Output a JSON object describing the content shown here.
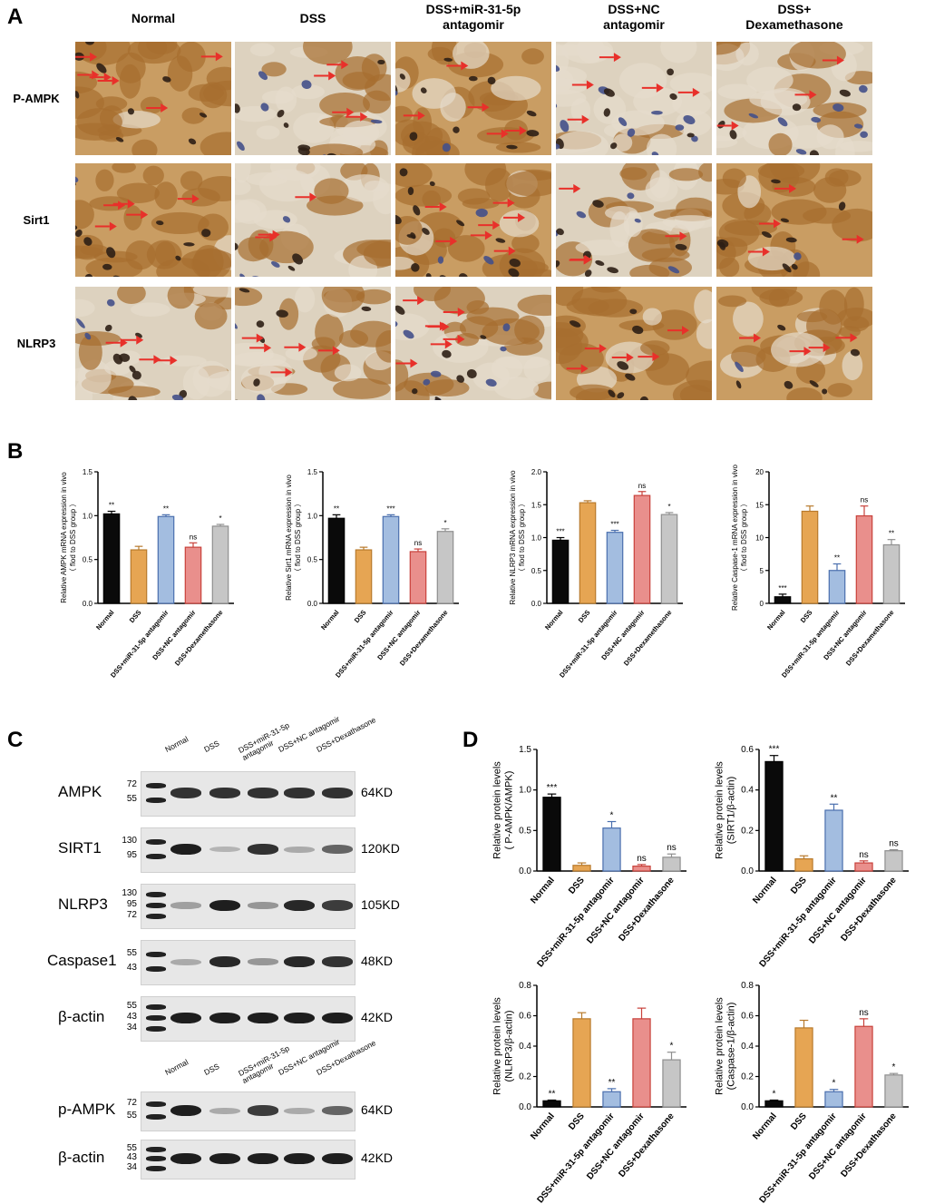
{
  "panel_letters": {
    "a": "A",
    "b": "B",
    "c": "C",
    "d": "D"
  },
  "panel_a": {
    "columns": [
      "Normal",
      "DSS",
      "DSS+miR-31-5p\nantagomir",
      "DSS+NC\nantagomir",
      "DSS+\nDexamethasone"
    ],
    "rows": [
      "P-AMPK",
      "Sirt1",
      "NLRP3"
    ],
    "colors": {
      "brown": "#b07a3c",
      "dark": "#3a2a1e",
      "blue": "#4f5f9a",
      "bg": "#e9dcc8",
      "arrow": "#e8302a"
    }
  },
  "panel_c": {
    "lanes": [
      "Normal",
      "DSS",
      "DSS+miR-31-5p\nantagomir",
      "DSS+NC antagomir",
      "DSS+Dexathasone"
    ],
    "blots": [
      {
        "name": "AMPK",
        "mw": [
          "72",
          "55"
        ],
        "kd": "64KD",
        "intensity": [
          0.85,
          0.85,
          0.85,
          0.85,
          0.85
        ]
      },
      {
        "name": "SIRT1",
        "mw": [
          "130",
          "95"
        ],
        "kd": "120KD",
        "intensity": [
          0.95,
          0.2,
          0.85,
          0.25,
          0.6
        ]
      },
      {
        "name": "NLRP3",
        "mw": [
          "130",
          "95",
          "72"
        ],
        "kd": "105KD",
        "intensity": [
          0.3,
          0.95,
          0.35,
          0.9,
          0.8
        ]
      },
      {
        "name": "Caspase1",
        "mw": [
          "55",
          "43"
        ],
        "kd": "48KD",
        "intensity": [
          0.25,
          0.9,
          0.35,
          0.9,
          0.85
        ]
      },
      {
        "name": "β-actin",
        "mw": [
          "55",
          "43",
          "34"
        ],
        "kd": "42KD",
        "intensity": [
          0.95,
          0.95,
          0.95,
          0.95,
          0.95
        ]
      }
    ],
    "lanes2": [
      "Normal",
      "DSS",
      "DSS+miR-31-5p\nantagomir",
      "DSS+NC antagomir",
      "DSS+Dexathasone"
    ],
    "blots2": [
      {
        "name": "p-AMPK",
        "mw": [
          "72",
          "55"
        ],
        "kd": "64KD",
        "intensity": [
          0.95,
          0.25,
          0.8,
          0.25,
          0.6
        ]
      },
      {
        "name": "β-actin",
        "mw": [
          "55",
          "43",
          "34"
        ],
        "kd": "42KD",
        "intensity": [
          0.95,
          0.95,
          0.95,
          0.95,
          0.95
        ]
      }
    ]
  },
  "chart_data": [
    {
      "id": "b1",
      "type": "bar",
      "categories": [
        "Normal",
        "DSS",
        "DSS+miR-31-5p antagomir",
        "DSS+NC antagomir",
        "DSS+Dexamethasone"
      ],
      "values": [
        1.02,
        0.61,
        0.99,
        0.64,
        0.88
      ],
      "errors": [
        0.03,
        0.04,
        0.02,
        0.05,
        0.02
      ],
      "sig": [
        "**",
        "",
        "**",
        "ns",
        "*"
      ],
      "ylabel": "Relative AMPK mRNA expression in vivo\n（ flod to DSS group ）",
      "ylim": [
        0,
        1.5
      ],
      "ticks": [
        0.0,
        0.5,
        1.0,
        1.5
      ],
      "decimals": 1
    },
    {
      "id": "b2",
      "type": "bar",
      "categories": [
        "Normal",
        "DSS",
        "DSS+miR-31-5p antagomir",
        "DSS+NC antagomir",
        "DSS+Dexamethasone"
      ],
      "values": [
        0.97,
        0.61,
        0.99,
        0.59,
        0.82
      ],
      "errors": [
        0.04,
        0.03,
        0.02,
        0.03,
        0.03
      ],
      "sig": [
        "**",
        "",
        "***",
        "ns",
        "*"
      ],
      "ylabel": "Relative Sirt1 mRNA expression in vivo\n（ flod to DSS group ）",
      "ylim": [
        0,
        1.5
      ],
      "ticks": [
        0.0,
        0.5,
        1.0,
        1.5
      ],
      "decimals": 1
    },
    {
      "id": "b3",
      "type": "bar",
      "categories": [
        "Normal",
        "DSS",
        "DSS+miR-31-5p antagomir",
        "DSS+NC antagomir",
        "DSS+Dexamethasone"
      ],
      "values": [
        0.96,
        1.53,
        1.08,
        1.64,
        1.35
      ],
      "errors": [
        0.04,
        0.03,
        0.03,
        0.06,
        0.03
      ],
      "sig": [
        "***",
        "",
        "***",
        "ns",
        "*"
      ],
      "ylabel": "Relative NLRP3 mRNA expression in vivo\n（ flod to DSS group ）",
      "ylim": [
        0,
        2.0
      ],
      "ticks": [
        0.0,
        0.5,
        1.0,
        1.5,
        2.0
      ],
      "decimals": 1
    },
    {
      "id": "b4",
      "type": "bar",
      "categories": [
        "Normal",
        "DSS",
        "DSS+miR-31-5p antagomir",
        "DSS+NC antagomir",
        "DSS+Dexamethasone"
      ],
      "values": [
        1.0,
        14.0,
        5.0,
        13.3,
        8.9
      ],
      "errors": [
        0.4,
        0.8,
        1.0,
        1.5,
        0.8
      ],
      "sig": [
        "***",
        "",
        "**",
        "ns",
        "**"
      ],
      "ylabel": "Relative Caspase-1 mRNA expression in vivo\n（ flod to DSS group ）",
      "ylim": [
        0,
        20
      ],
      "ticks": [
        0,
        5,
        10,
        15,
        20
      ],
      "decimals": 0
    },
    {
      "id": "d1",
      "type": "bar",
      "categories": [
        "Normal",
        "DSS",
        "DSS+miR-31-5p antagomir",
        "DSS+NC antagomir",
        "DSS+Dexathasone"
      ],
      "values": [
        0.91,
        0.07,
        0.53,
        0.06,
        0.17
      ],
      "errors": [
        0.04,
        0.03,
        0.08,
        0.02,
        0.04
      ],
      "sig": [
        "***",
        "",
        "*",
        "ns",
        "ns"
      ],
      "ylabel": "Relative protein levels\n( P-AMPK/AMPK)",
      "ylim": [
        0,
        1.5
      ],
      "ticks": [
        0.0,
        0.5,
        1.0,
        1.5
      ],
      "decimals": 1
    },
    {
      "id": "d2",
      "type": "bar",
      "categories": [
        "Normal",
        "DSS",
        "DSS+miR-31-5p antagomir",
        "DSS+NC antagomir",
        "DSS+Dexathasone"
      ],
      "values": [
        0.54,
        0.06,
        0.3,
        0.04,
        0.1
      ],
      "errors": [
        0.03,
        0.015,
        0.03,
        0.01,
        0.005
      ],
      "sig": [
        "***",
        "",
        "**",
        "ns",
        "ns"
      ],
      "ylabel": "Relative protein levels\n(SIRT1/β-actin)",
      "ylim": [
        0,
        0.6
      ],
      "ticks": [
        0.0,
        0.2,
        0.4,
        0.6
      ],
      "decimals": 1
    },
    {
      "id": "d3",
      "type": "bar",
      "categories": [
        "Normal",
        "DSS",
        "DSS+miR-31-5p antagomir",
        "DSS+NC antagomir",
        "DSS+Dexathasone"
      ],
      "values": [
        0.04,
        0.58,
        0.1,
        0.58,
        0.31
      ],
      "errors": [
        0.005,
        0.04,
        0.02,
        0.07,
        0.05
      ],
      "sig": [
        "**",
        "",
        "**",
        "",
        "*"
      ],
      "ylabel": "Relative protein levels\n(NLRP3/β-actin)",
      "ylim": [
        0,
        0.8
      ],
      "ticks": [
        0.0,
        0.2,
        0.4,
        0.6,
        0.8
      ],
      "decimals": 1
    },
    {
      "id": "d4",
      "type": "bar",
      "categories": [
        "Normal",
        "DSS",
        "DSS+miR-31-5p antagomir",
        "DSS+NC antagomir",
        "DSS+Dexathasone"
      ],
      "values": [
        0.04,
        0.52,
        0.1,
        0.53,
        0.21
      ],
      "errors": [
        0.005,
        0.05,
        0.015,
        0.05,
        0.01
      ],
      "sig": [
        "*",
        "",
        "*",
        "ns",
        "*"
      ],
      "ylabel": "Relative protein levels\n(Caspase-1/β-actin)",
      "ylim": [
        0,
        0.8
      ],
      "ticks": [
        0.0,
        0.2,
        0.4,
        0.6,
        0.8
      ],
      "decimals": 1
    }
  ],
  "bar_colors": [
    "#0a0a0a",
    "#e6a553",
    "#a3bde0",
    "#e98f8c",
    "#c6c6c6"
  ],
  "bar_edges": [
    "#000000",
    "#b87a2c",
    "#4a6fae",
    "#c8413b",
    "#8f8f8f"
  ]
}
